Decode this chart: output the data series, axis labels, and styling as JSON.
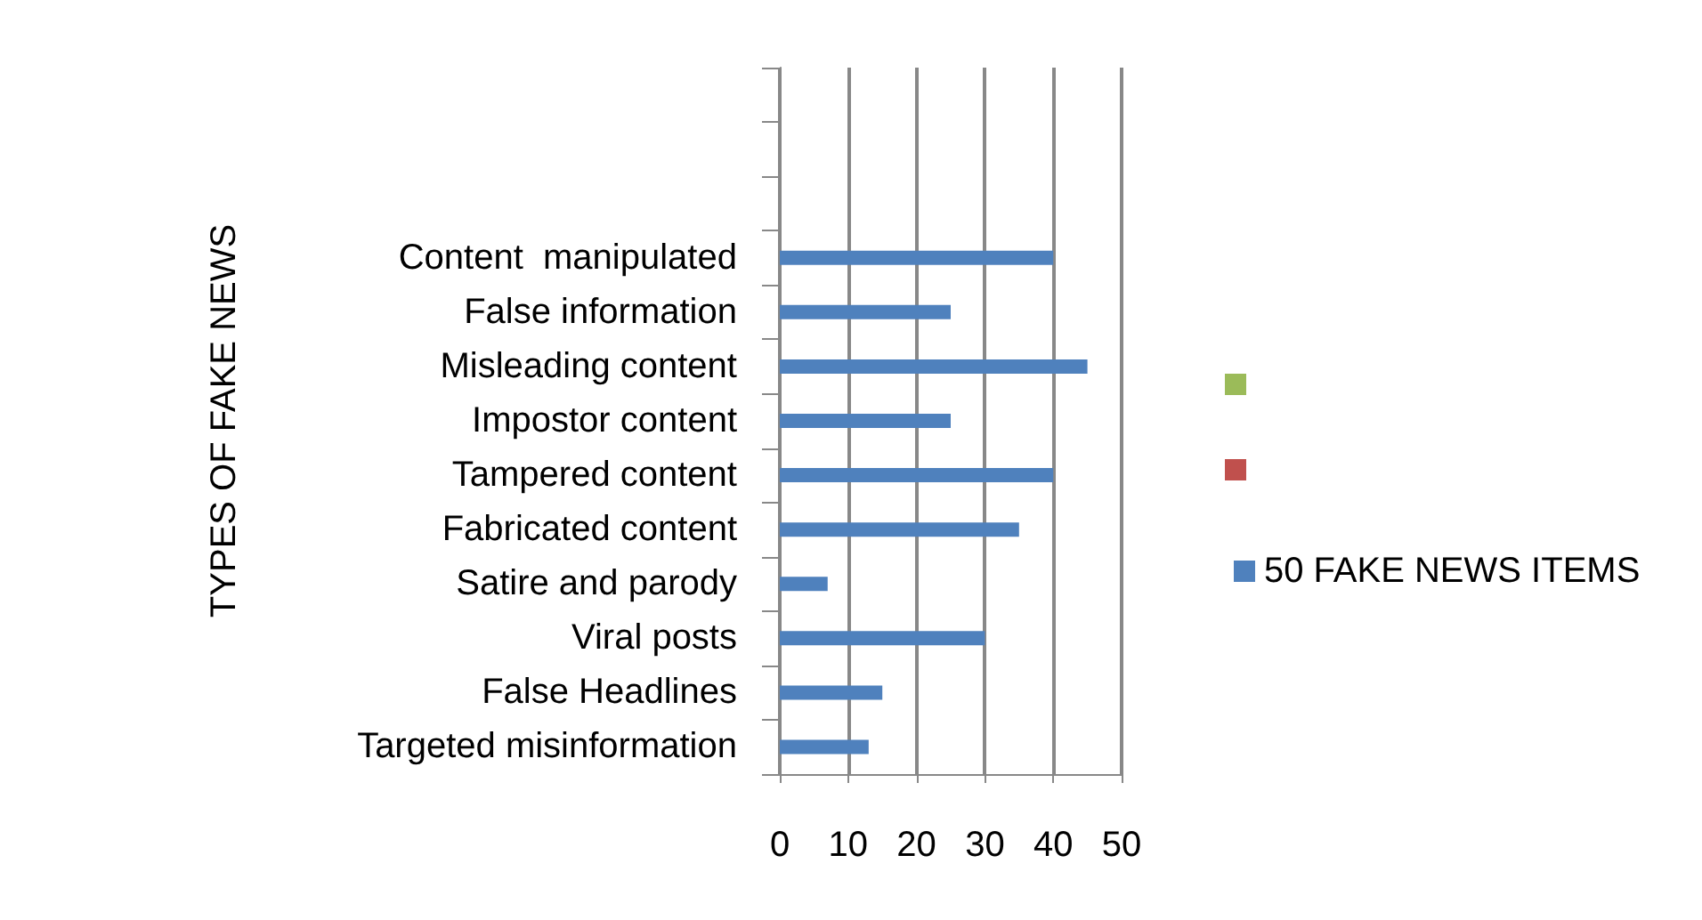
{
  "chart_data": {
    "type": "bar",
    "orientation": "horizontal",
    "ylabel": "TYPES OF FAKE NEWS",
    "categories": [
      null,
      null,
      null,
      "Content  manipulated",
      "False information",
      "Misleading content",
      "Impostor content",
      "Tampered content",
      "Fabricated content",
      "Satire and parody",
      "Viral posts",
      "False Headlines",
      "Targeted misinformation"
    ],
    "series": [
      {
        "color": "#9bbb59",
        "values": [
          null,
          null,
          null,
          null,
          null,
          null,
          null,
          null,
          null,
          null,
          null,
          null,
          null
        ]
      },
      {
        "color": "#c0504d",
        "values": [
          null,
          null,
          null,
          null,
          null,
          null,
          null,
          null,
          null,
          null,
          null,
          null,
          null
        ]
      },
      {
        "name": "50 FAKE NEWS ITEMS",
        "color": "#4f81bd",
        "values": [
          null,
          null,
          null,
          40,
          25,
          45,
          25,
          40,
          35,
          7,
          30,
          15,
          13
        ]
      }
    ],
    "xlim": [
      0,
      50
    ],
    "xticks": [
      0,
      10,
      20,
      30,
      40,
      50
    ],
    "grid": "x",
    "legend": "right"
  }
}
